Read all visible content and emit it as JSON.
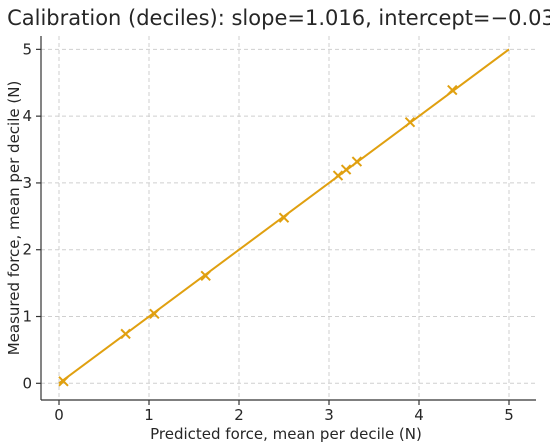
{
  "chart_data": {
    "type": "scatter",
    "title": "Calibration (deciles): slope=1.016, intercept=−0.03",
    "xlabel": "Predicted force, mean per decile (N)",
    "ylabel": "Measured force, mean per decile (N)",
    "xlim": [
      -0.2,
      5.3
    ],
    "ylim": [
      -0.25,
      5.2
    ],
    "xticks": [
      "0",
      "1",
      "2",
      "3",
      "4",
      "5"
    ],
    "yticks": [
      "0",
      "1",
      "2",
      "3",
      "4",
      "5"
    ],
    "grid": true,
    "colors": {
      "series": "#e0a010"
    },
    "series": [
      {
        "marker": "x",
        "x": [
          0.05,
          0.74,
          1.06,
          1.63,
          2.5,
          3.1,
          3.19,
          3.31,
          3.9,
          4.37
        ],
        "y": [
          0.03,
          0.74,
          1.04,
          1.61,
          2.48,
          3.11,
          3.2,
          3.32,
          3.91,
          4.39
        ]
      }
    ],
    "fit_line": {
      "x": [
        0.0,
        5.0
      ],
      "y": [
        0.0,
        5.0
      ]
    }
  }
}
